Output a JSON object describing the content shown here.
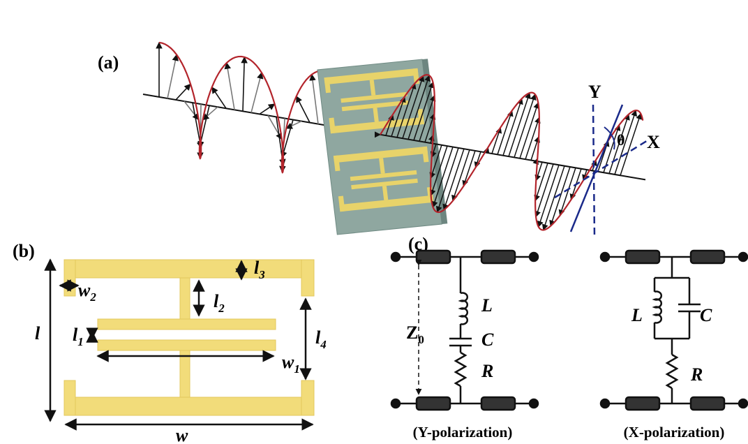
{
  "panel_a": {
    "label": "(a)",
    "axis_y": "Y",
    "axis_x": "X",
    "angle": "θ"
  },
  "panel_b": {
    "label": "(b)",
    "dims": [
      {
        "base": "l",
        "sub": "3"
      },
      {
        "base": "w",
        "sub": "2"
      },
      {
        "base": "l",
        "sub": "2"
      },
      {
        "base": "l"
      },
      {
        "base": "l",
        "sub": "1"
      },
      {
        "base": "l",
        "sub": "4"
      },
      {
        "base": "w",
        "sub": "1"
      },
      {
        "base": "w"
      }
    ]
  },
  "panel_c": {
    "label": "(c)",
    "y_circuit": {
      "L": "L",
      "C": "C",
      "Z": {
        "base": "Z",
        "sub": "0"
      },
      "R": "R",
      "caption": "(Y-polarization)"
    },
    "x_circuit": {
      "L": "L",
      "C": "C",
      "R": "R",
      "caption": "(X-polarization)"
    }
  }
}
